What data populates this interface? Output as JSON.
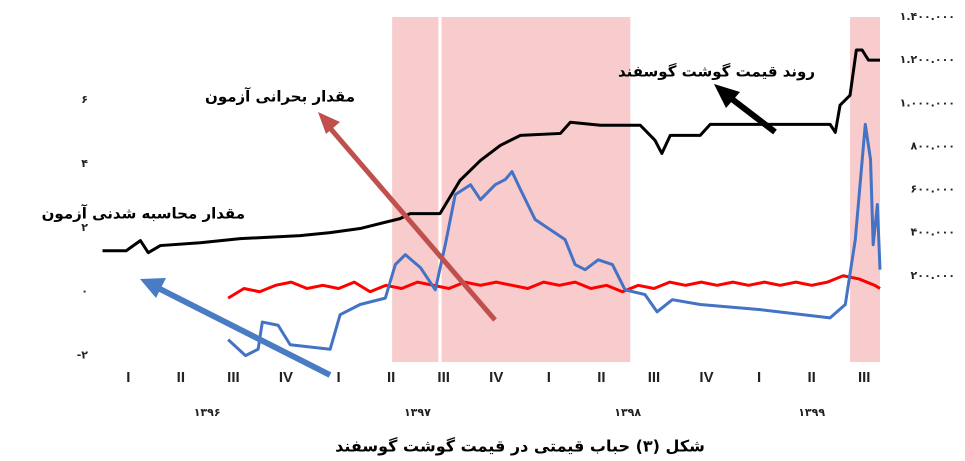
{
  "chart_data": {
    "type": "line",
    "title": "شکل (۳) حباب قیمتی در قیمت گوشت گوسفند",
    "annotations": [
      "روند قیمت گوشت گوسفند",
      "مقدار بحرانی آزمون",
      "مقدار محاسبه شدنی آزمون"
    ],
    "categories": [
      "I",
      "II",
      "III",
      "IV",
      "I",
      "II",
      "III",
      "IV",
      "I",
      "II",
      "III",
      "IV",
      "I",
      "II",
      "III"
    ],
    "year_labels": [
      "۱۳۹۶",
      "۱۳۹۷",
      "۱۳۹۸",
      "۱۳۹۹"
    ],
    "xlim": [
      -0.5,
      14.3
    ],
    "ylim": [
      -2.2,
      8.6
    ],
    "yticks": [
      {
        "value": 6,
        "label": "۶"
      },
      {
        "value": 4,
        "label": "۴"
      },
      {
        "value": 2,
        "label": "۲"
      },
      {
        "value": 0,
        "label": "۰"
      },
      {
        "value": -2,
        "label": "-۲"
      }
    ],
    "y2lim": [
      -200000,
      1400000
    ],
    "y2ticks": [
      {
        "value": 1400000,
        "label": "۱.۴۰۰.۰۰۰"
      },
      {
        "value": 1200000,
        "label": "۱.۲۰۰.۰۰۰"
      },
      {
        "value": 1000000,
        "label": "۱.۰۰۰.۰۰۰"
      },
      {
        "value": 800000,
        "label": "۸۰۰.۰۰۰"
      },
      {
        "value": 600000,
        "label": "۶۰۰.۰۰۰"
      },
      {
        "value": 400000,
        "label": "۴۰۰.۰۰۰"
      },
      {
        "value": 200000,
        "label": "۲۰۰.۰۰۰"
      }
    ],
    "shaded_regions": [
      [
        5.02,
        9.55
      ],
      [
        13.73,
        14.3
      ]
    ],
    "shaded_color": "#f8cccc",
    "series": [
      {
        "color": "#000000",
        "axis": "y2",
        "x": [
          -0.49,
          -0.04,
          0.23,
          0.38,
          0.61,
          1.37,
          2.13,
          3.27,
          3.84,
          4.41,
          5.17,
          5.36,
          5.93,
          6.31,
          6.7,
          7.08,
          7.46,
          8.22,
          8.41,
          8.98,
          9.74,
          10.02,
          10.15,
          10.31,
          10.88,
          11.07,
          13.35,
          13.45,
          13.54,
          13.73,
          13.85,
          13.96,
          14.08,
          14.3
        ],
        "values": [
          316000,
          316000,
          363000,
          307000,
          340000,
          353000,
          372000,
          386000,
          400000,
          419000,
          465000,
          488000,
          488000,
          642000,
          735000,
          805000,
          851000,
          860000,
          912000,
          898000,
          898000,
          828000,
          767000,
          851000,
          851000,
          902000,
          902000,
          865000,
          991000,
          1037000,
          1247000,
          1247000,
          1200000,
          1200000
        ]
      },
      {
        "color": "#ff0000",
        "x": [
          1.9,
          2.2,
          2.5,
          2.8,
          3.1,
          3.4,
          3.7,
          4.0,
          4.3,
          4.6,
          4.9,
          5.2,
          5.5,
          5.8,
          6.1,
          6.4,
          6.7,
          7.0,
          7.3,
          7.6,
          7.9,
          8.2,
          8.5,
          8.8,
          9.1,
          9.4,
          9.7,
          10.0,
          10.3,
          10.6,
          10.9,
          11.2,
          11.5,
          11.8,
          12.1,
          12.4,
          12.7,
          13.0,
          13.3,
          13.6,
          13.9,
          14.2,
          14.3
        ],
        "values": [
          -0.2,
          0.1,
          0.0,
          0.2,
          0.3,
          0.1,
          0.2,
          0.1,
          0.3,
          0.0,
          0.2,
          0.1,
          0.3,
          0.2,
          0.1,
          0.3,
          0.2,
          0.3,
          0.2,
          0.1,
          0.3,
          0.2,
          0.3,
          0.1,
          0.2,
          0.0,
          0.2,
          0.1,
          0.3,
          0.2,
          0.3,
          0.2,
          0.3,
          0.2,
          0.3,
          0.2,
          0.3,
          0.2,
          0.3,
          0.5,
          0.4,
          0.2,
          0.1
        ]
      },
      {
        "color": "#4472c4",
        "x": [
          1.9,
          2.23,
          2.47,
          2.55,
          2.85,
          3.08,
          3.84,
          4.03,
          4.41,
          4.89,
          5.08,
          5.27,
          5.56,
          5.84,
          6.03,
          6.22,
          6.51,
          6.7,
          6.98,
          7.17,
          7.3,
          7.46,
          7.74,
          8.03,
          8.31,
          8.5,
          8.69,
          8.94,
          9.21,
          9.45,
          9.83,
          10.06,
          10.35,
          10.88,
          12.02,
          13.35,
          13.64,
          13.83,
          14.02,
          14.12,
          14.17,
          14.25,
          14.3
        ],
        "values": [
          -1.5,
          -2.0,
          -1.8,
          -0.95,
          -1.05,
          -1.66,
          -1.8,
          -0.72,
          -0.4,
          -0.2,
          0.85,
          1.16,
          0.75,
          0.06,
          1.47,
          3.04,
          3.35,
          2.88,
          3.35,
          3.51,
          3.76,
          3.2,
          2.26,
          1.94,
          1.63,
          0.85,
          0.69,
          1.0,
          0.85,
          0.06,
          -0.09,
          -0.63,
          -0.25,
          -0.4,
          -0.56,
          -0.82,
          -0.4,
          1.63,
          5.24,
          4.14,
          1.47,
          2.73,
          0.69
        ]
      }
    ]
  }
}
